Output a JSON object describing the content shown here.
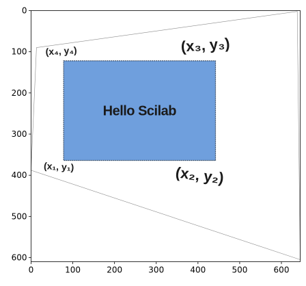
{
  "chart_data": {
    "type": "image",
    "title": "",
    "xlabel": "",
    "ylabel": "",
    "xlim": [
      0,
      645
    ],
    "ylim": [
      610,
      0
    ],
    "grid": false,
    "x_ticks": [
      0,
      100,
      200,
      300,
      400,
      500,
      600
    ],
    "y_ticks": [
      0,
      100,
      200,
      300,
      400,
      500,
      600
    ],
    "image": {
      "rectangle": {
        "x": [
          78,
          442
        ],
        "y": [
          122,
          364
        ],
        "fill": "#6f9fdd",
        "edge": "#3d4f66",
        "caption": "Hello Scilab"
      },
      "warp_outline": [
        [
          13,
          90
        ],
        [
          638,
          2
        ],
        [
          645,
          605
        ],
        [
          0,
          388
        ]
      ],
      "corner_labels": [
        {
          "text": "(x₄, y₄)",
          "x": 35,
          "y": 108,
          "size": 14,
          "angle": -3
        },
        {
          "text": "(x₃, y₃)",
          "x": 360,
          "y": 100,
          "size": 22,
          "angle": -4
        },
        {
          "text": "(x₁, y₁)",
          "x": 30,
          "y": 385,
          "size": 14,
          "angle": 3
        },
        {
          "text": "(x₂, y₂)",
          "x": 345,
          "y": 405,
          "size": 22,
          "angle": 7
        }
      ]
    }
  }
}
